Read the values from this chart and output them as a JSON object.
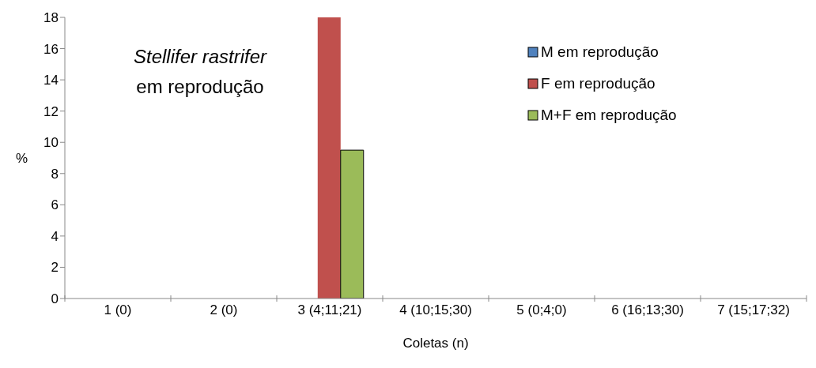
{
  "chart_data": {
    "type": "bar",
    "title": "Stellifer rastrifer",
    "subtitle": "em reprodução",
    "xlabel": "Coletas (n)",
    "ylabel": "%",
    "categories": [
      "1 (0)",
      "2 (0)",
      "3 (4;11;21)",
      "4 (10;15;30)",
      "5 (0;4;0)",
      "6 (16;13;30)",
      "7 (15;17;32)"
    ],
    "series": [
      {
        "name": "M em reprodução",
        "color": "#4f81bd",
        "values": [
          0,
          0,
          0,
          0,
          0,
          0,
          0
        ]
      },
      {
        "name": "F em reprodução",
        "color": "#c0504d",
        "values": [
          0,
          0,
          18,
          0,
          0,
          0,
          0
        ]
      },
      {
        "name": "M+F em reprodução",
        "color": "#9bbb59",
        "values": [
          0,
          0,
          9.5,
          0,
          0,
          0,
          0
        ]
      }
    ],
    "ylim": [
      0,
      18
    ],
    "yticks": [
      0,
      2,
      4,
      6,
      8,
      10,
      12,
      14,
      16,
      18
    ],
    "grid": false,
    "legend": "top right"
  }
}
